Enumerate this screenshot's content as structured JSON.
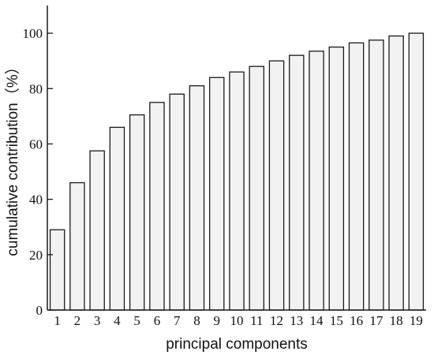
{
  "chart_data": {
    "type": "bar",
    "title": "",
    "xlabel": "principal components",
    "ylabel": "cumulative contribution（%）",
    "categories": [
      "1",
      "2",
      "3",
      "4",
      "5",
      "6",
      "7",
      "8",
      "9",
      "10",
      "11",
      "12",
      "13",
      "14",
      "15",
      "16",
      "17",
      "18",
      "19"
    ],
    "values": [
      29,
      46,
      57.5,
      66,
      70.5,
      75,
      78,
      81,
      84,
      86,
      88,
      90,
      92,
      93.5,
      95,
      96.5,
      97.5,
      99,
      100
    ],
    "ylim": [
      0,
      110
    ],
    "yticks": [
      0,
      20,
      40,
      60,
      80,
      100
    ],
    "grid": false,
    "legend": "none",
    "colors": {
      "bar_fill": "#f2f2f2",
      "bar_stroke": "#1a1a1a",
      "axis": "#1a1a1a"
    }
  }
}
